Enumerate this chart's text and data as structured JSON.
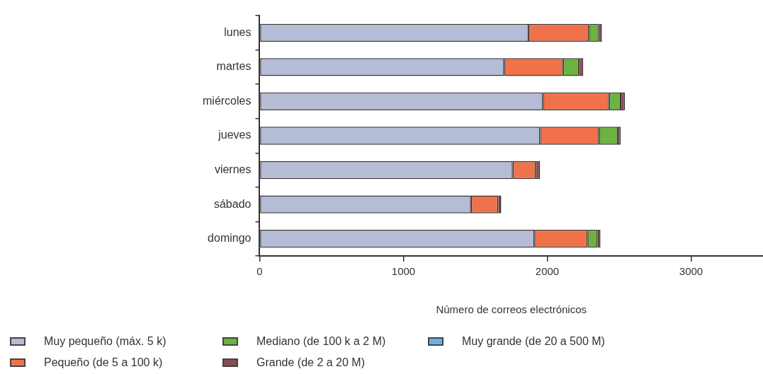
{
  "chart_data": {
    "type": "bar",
    "orientation": "horizontal",
    "stacked": true,
    "xlabel": "Número de correos electrónicos",
    "categories": [
      "lunes",
      "martes",
      "miércoles",
      "jueves",
      "viernes",
      "sábado",
      "domingo"
    ],
    "series": [
      {
        "name": "Muy pequeño (máx. 5 k)",
        "color": "#b4bcd6",
        "values": [
          1870,
          1700,
          1970,
          1950,
          1760,
          1470,
          1910
        ]
      },
      {
        "name": "Pequeño (de 5 a 100 k)",
        "color": "#f0724a",
        "values": [
          420,
          410,
          460,
          410,
          160,
          190,
          370
        ]
      },
      {
        "name": "Mediano (de 100 k a 2 M)",
        "color": "#6db33f",
        "values": [
          70,
          110,
          80,
          130,
          null,
          null,
          70
        ]
      },
      {
        "name": "Grande (de 2 a 20 M)",
        "color": "#8c4b4f",
        "values": [
          20,
          30,
          30,
          20,
          30,
          20,
          20
        ]
      },
      {
        "name": "Muy grande (de 20 a 500 M)",
        "color": "#6ab0e6",
        "values": [
          null,
          null,
          null,
          null,
          null,
          null,
          null
        ]
      }
    ],
    "xlim": [
      0,
      3500
    ],
    "xticks": [
      0,
      1000,
      2000,
      3000
    ],
    "grid": false,
    "legend": "bottom"
  }
}
